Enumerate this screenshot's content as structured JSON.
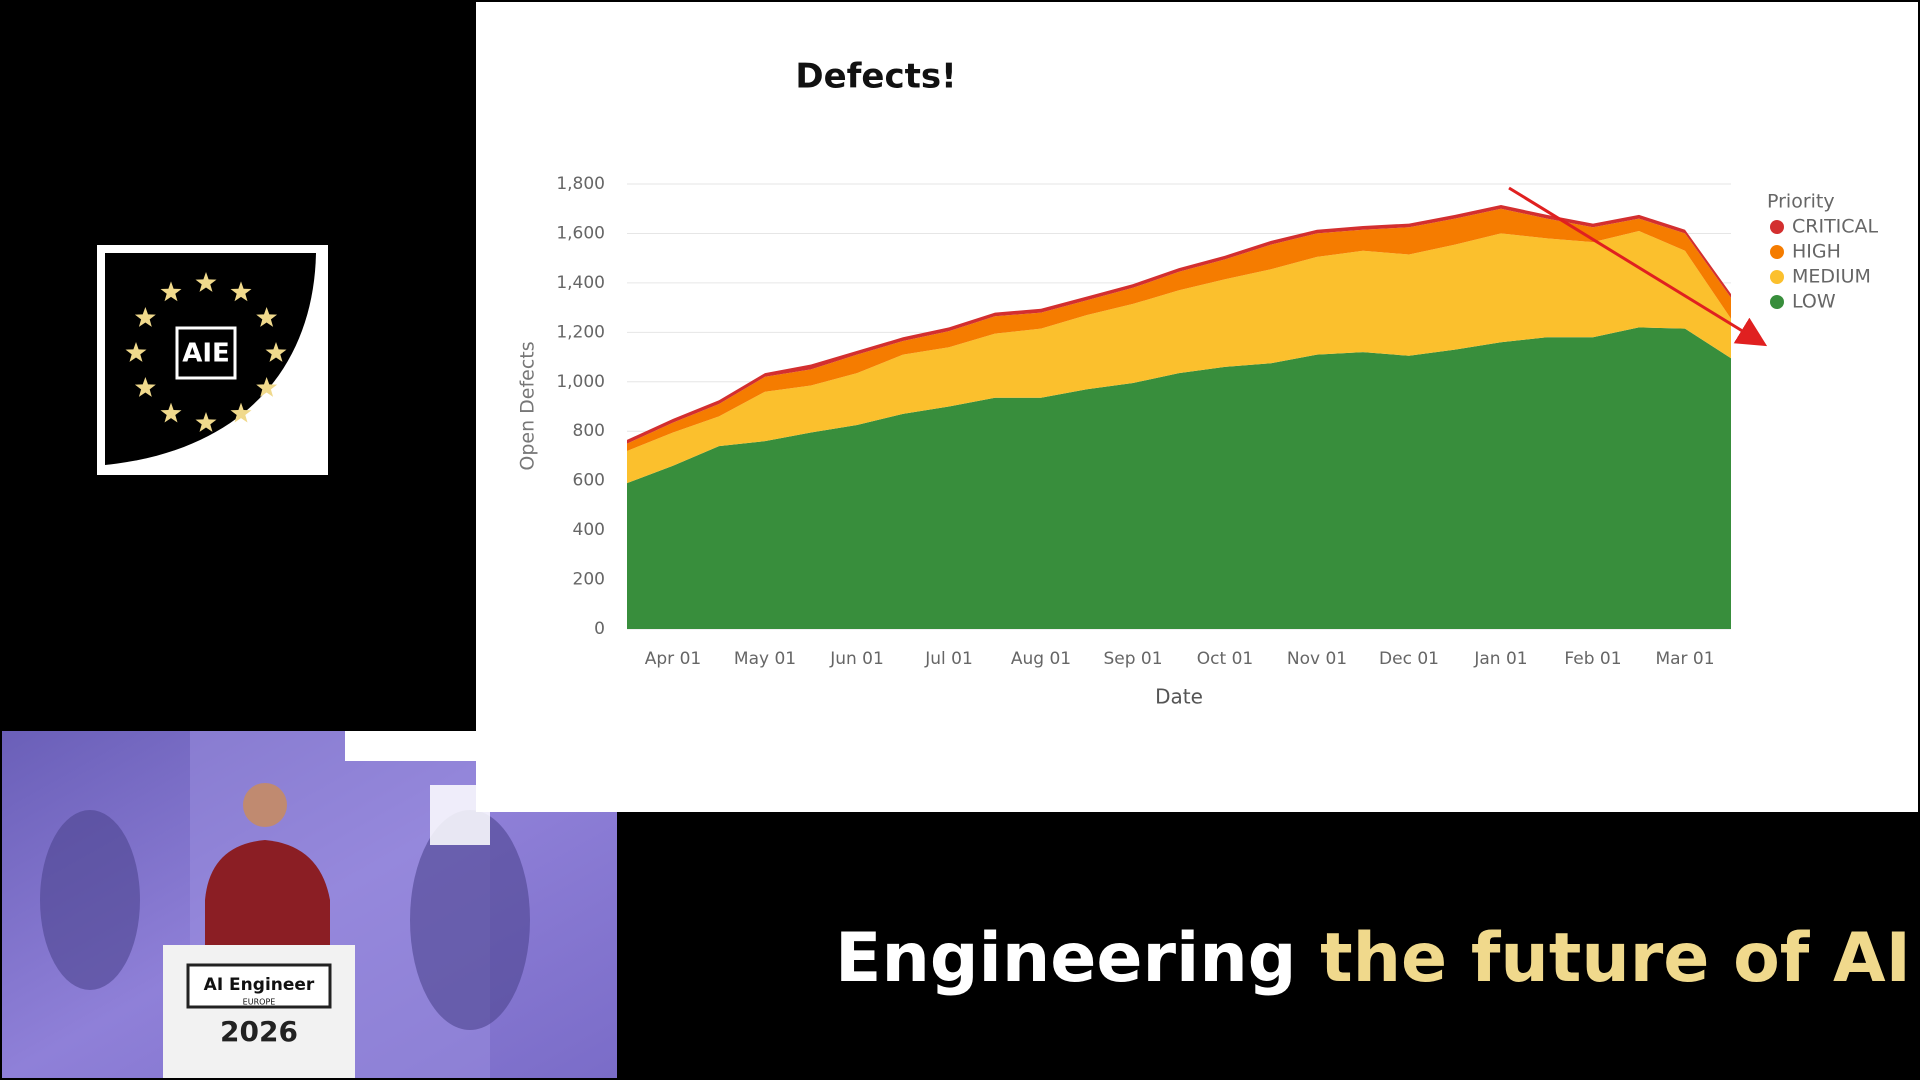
{
  "chart_data": {
    "type": "stacked-area",
    "title": "Defects!",
    "x_label": "Date",
    "y_label": "Open Defects",
    "categories": [
      null,
      "Apr 01",
      null,
      "May 01",
      null,
      "Jun 01",
      null,
      "Jul 01",
      null,
      "Aug 01",
      null,
      "Sep 01",
      null,
      "Oct 01",
      null,
      "Nov 01",
      null,
      "Dec 01",
      null,
      "Jan 01",
      null,
      "Feb 01",
      null,
      "Mar 01",
      null
    ],
    "series": [
      {
        "name": "CRITICAL",
        "color": "#d32f2f",
        "values": [
          15,
          15,
          15,
          15,
          20,
          15,
          15,
          15,
          15,
          15,
          15,
          15,
          15,
          15,
          15,
          15,
          15,
          15,
          15,
          15,
          15,
          15,
          15,
          15,
          15
        ]
      },
      {
        "name": "HIGH",
        "color": "#f57c00",
        "values": [
          30,
          40,
          50,
          60,
          65,
          75,
          55,
          65,
          70,
          65,
          60,
          65,
          75,
          80,
          100,
          95,
          85,
          110,
          105,
          100,
          80,
          60,
          50,
          70,
          85
        ]
      },
      {
        "name": "MEDIUM",
        "color": "#fbc02d",
        "values": [
          130,
          135,
          120,
          200,
          190,
          210,
          240,
          240,
          260,
          280,
          300,
          320,
          335,
          355,
          380,
          395,
          410,
          410,
          425,
          440,
          400,
          385,
          390,
          315,
          160
        ]
      },
      {
        "name": "LOW",
        "color": "#388e3c",
        "values": [
          590,
          660,
          740,
          760,
          795,
          825,
          870,
          900,
          935,
          935,
          970,
          995,
          1035,
          1060,
          1075,
          1110,
          1120,
          1105,
          1130,
          1160,
          1180,
          1180,
          1220,
          1215,
          1095
        ]
      }
    ],
    "legend_title": "Priority",
    "ylim": [
      0,
      1800
    ],
    "yticks": [
      0,
      200,
      400,
      600,
      800,
      {
        "value": 1000,
        "label": "1,000"
      },
      {
        "value": 1200,
        "label": "1,200"
      },
      {
        "value": 1400,
        "label": "1,400"
      },
      {
        "value": 1600,
        "label": "1,600"
      },
      {
        "value": 1800,
        "label": "1,800"
      }
    ],
    "grid": true,
    "legend": "right"
  },
  "logo": {
    "text": "AIE"
  },
  "video": {
    "podium_title": "AI Engineer",
    "podium_subtitle": "EUROPE",
    "podium_year": "2026"
  },
  "slogan": {
    "plain": "Engineering",
    "highlight": "the future of AI"
  }
}
